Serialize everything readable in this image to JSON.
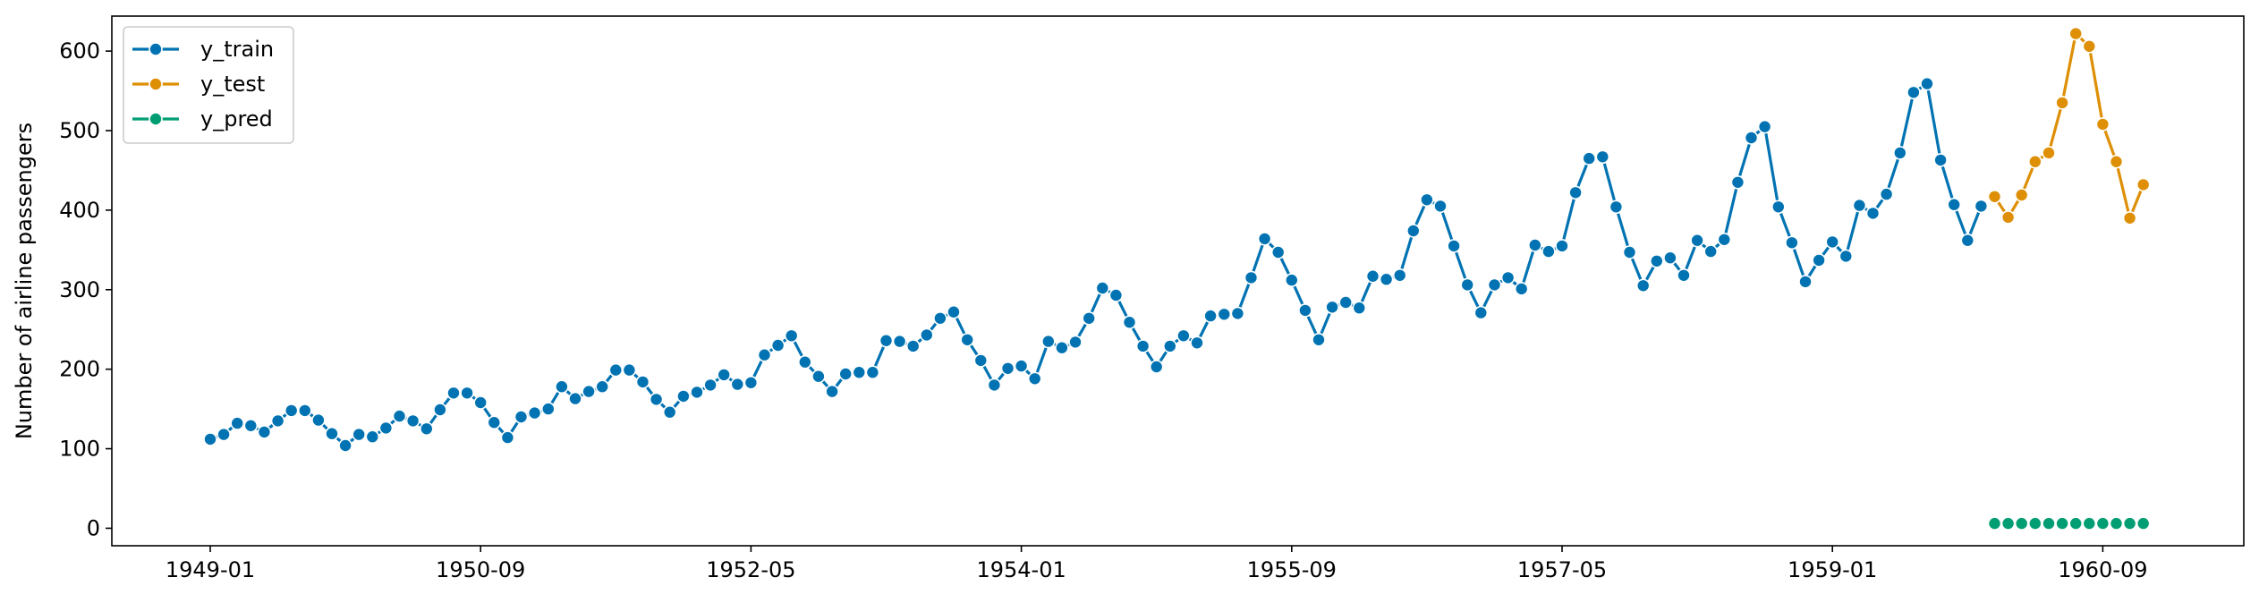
{
  "chart_data": {
    "type": "line",
    "title": "",
    "xlabel": "",
    "ylabel": "Number of airline passengers",
    "x_start": "1949-01",
    "x_tick_labels": [
      "1949-01",
      "1950-09",
      "1952-05",
      "1954-01",
      "1955-09",
      "1957-05",
      "1959-01",
      "1960-09"
    ],
    "yticks": [
      0,
      100,
      200,
      300,
      400,
      500,
      600
    ],
    "ylim": [
      -22,
      644
    ],
    "grid": false,
    "legend_position": "top-left",
    "series": [
      {
        "name": "y_train",
        "color": "#0173b2",
        "start": "1949-01",
        "values": [
          112,
          118,
          132,
          129,
          121,
          135,
          148,
          148,
          136,
          119,
          104,
          118,
          115,
          126,
          141,
          135,
          125,
          149,
          170,
          170,
          158,
          133,
          114,
          140,
          145,
          150,
          178,
          163,
          172,
          178,
          199,
          199,
          184,
          162,
          146,
          166,
          171,
          180,
          193,
          181,
          183,
          218,
          230,
          242,
          209,
          191,
          172,
          194,
          196,
          196,
          236,
          235,
          229,
          243,
          264,
          272,
          237,
          211,
          180,
          201,
          204,
          188,
          235,
          227,
          234,
          264,
          302,
          293,
          259,
          229,
          203,
          229,
          242,
          233,
          267,
          269,
          270,
          315,
          364,
          347,
          312,
          274,
          237,
          278,
          284,
          277,
          317,
          313,
          318,
          374,
          413,
          405,
          355,
          306,
          271,
          306,
          315,
          301,
          356,
          348,
          355,
          422,
          465,
          467,
          404,
          347,
          305,
          336,
          340,
          318,
          362,
          348,
          363,
          435,
          491,
          505,
          404,
          359,
          310,
          337,
          360,
          342,
          406,
          396,
          420,
          472,
          548,
          559,
          463,
          407,
          362,
          405
        ]
      },
      {
        "name": "y_test",
        "color": "#de8f05",
        "start": "1960-01",
        "values": [
          417,
          391,
          419,
          461,
          472,
          535,
          622,
          606,
          508,
          461,
          390,
          432
        ]
      },
      {
        "name": "y_pred",
        "color": "#029e73",
        "start": "1960-01",
        "values": [
          6,
          6,
          6,
          6,
          6,
          6,
          6,
          6,
          6,
          6,
          6,
          6
        ]
      }
    ]
  }
}
